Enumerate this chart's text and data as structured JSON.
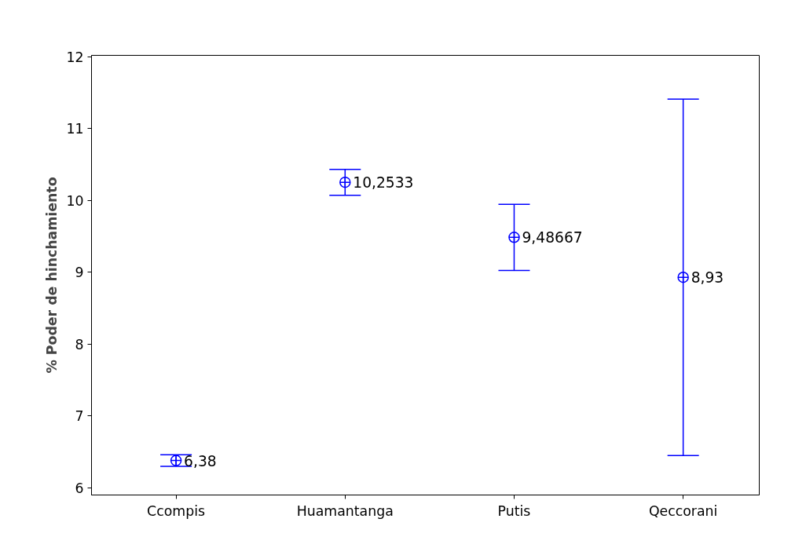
{
  "chart_data": {
    "type": "scatter",
    "ylabel": "% Poder de hinchamiento",
    "categories": [
      "Ccompis",
      "Huamantanga",
      "Putis",
      "Qeccorani"
    ],
    "values": [
      6.38,
      10.2533,
      9.48667,
      8.93
    ],
    "errors": [
      0.08,
      0.18,
      0.46,
      2.48
    ],
    "value_labels": [
      "6,38",
      "10,2533",
      "9,48667",
      "8,93"
    ],
    "color": "#0000ff",
    "marker": "circle",
    "ylim": [
      5.9,
      12.02
    ],
    "yticks": [
      6,
      7,
      8,
      9,
      10,
      11,
      12
    ],
    "grid": false
  }
}
